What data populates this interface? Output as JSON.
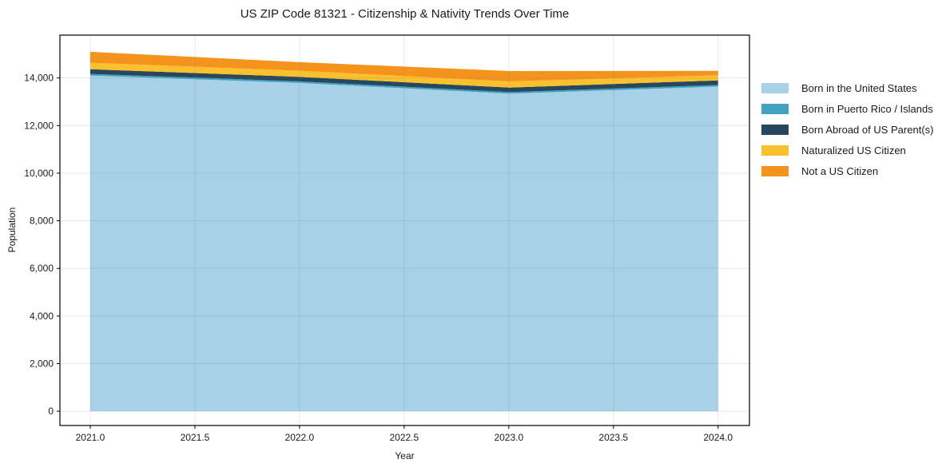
{
  "chart_data": {
    "type": "area",
    "stacked": true,
    "title": "US ZIP Code 81321 - Citizenship & Nativity Trends Over Time",
    "xlabel": "Year",
    "ylabel": "Population",
    "x": [
      2021,
      2022,
      2023,
      2024
    ],
    "series": [
      {
        "name": "Born in the United States",
        "color": "#a6d1e6",
        "values": [
          14100,
          13790,
          13340,
          13640
        ]
      },
      {
        "name": "Born in Puerto Rico / Islands",
        "color": "#41a2c4",
        "values": [
          68,
          67,
          67,
          67
        ]
      },
      {
        "name": "Born Abroad of US Parent(s)",
        "color": "#27475c",
        "values": [
          200,
          190,
          190,
          190
        ]
      },
      {
        "name": "Naturalized US Citizen",
        "color": "#fbc02d",
        "values": [
          270,
          258,
          258,
          212
        ]
      },
      {
        "name": "Not a US Citizen",
        "color": "#f5941d",
        "values": [
          460,
          360,
          437,
          190
        ]
      }
    ],
    "xlim": [
      2020.855,
      2024.15
    ],
    "ylim": [
      -600,
      15800
    ],
    "xticks": [
      2021.0,
      2021.5,
      2022.0,
      2022.5,
      2023.0,
      2023.5,
      2024.0
    ],
    "yticks": [
      0,
      2000,
      4000,
      6000,
      8000,
      10000,
      12000,
      14000
    ],
    "grid": true,
    "legend_position": "right of plot, frameless"
  },
  "style": {
    "background": "#ffffff",
    "text_color": "#1a1a1a",
    "spine_color": "#000000",
    "grid_color": "rgba(120,120,120,0.18)"
  }
}
